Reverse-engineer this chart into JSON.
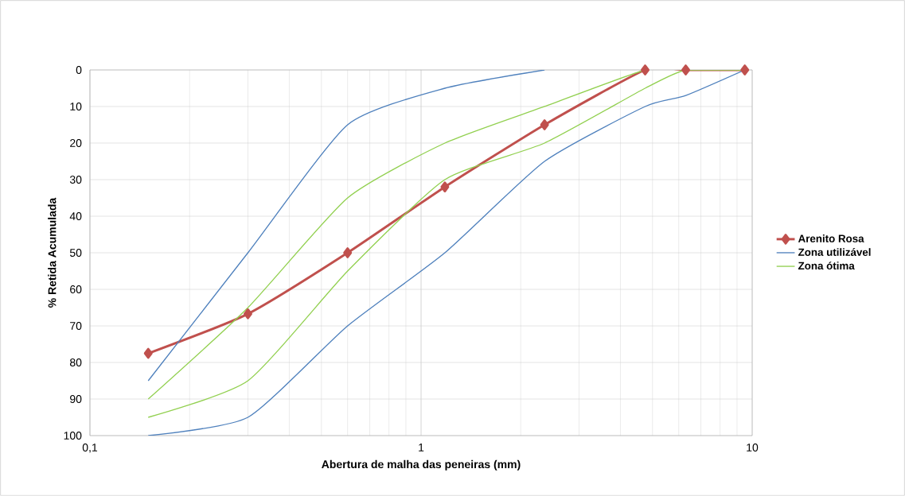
{
  "chart_data": {
    "type": "line",
    "xlabel": "Abertura de malha das peneiras (mm)",
    "ylabel": "% Retida Acumulada",
    "log": "x",
    "xlim": [
      0.1,
      10
    ],
    "xticks": [
      {
        "value": 0.1,
        "label": "0,1"
      },
      1,
      10
    ],
    "ylim": [
      100,
      0
    ],
    "yticks": [
      0,
      10,
      20,
      30,
      40,
      50,
      60,
      70,
      80,
      90,
      100
    ],
    "grid": true,
    "legend": "right",
    "line_style": "solid",
    "series": [
      {
        "name": "Arenito Rosa",
        "color": "#c0504d",
        "marker": "diamond",
        "x": [
          0.15,
          0.3,
          0.6,
          1.18,
          2.36,
          4.75,
          6.3,
          9.5
        ],
        "values": [
          77.5,
          66.7,
          50,
          32,
          15,
          0,
          0,
          0
        ]
      },
      {
        "name": "Zona utilizável",
        "color": "#4f81bd",
        "marker": "none",
        "x": [
          0.15,
          0.3,
          0.6,
          1.18,
          2.36,
          4.75,
          6.3,
          9.5
        ],
        "values": [
          100,
          95,
          70,
          50,
          25,
          10,
          7,
          0
        ]
      },
      {
        "color": "#4f81bd",
        "marker": "none",
        "x": [
          0.15,
          0.3,
          0.6,
          1.18,
          2.36
        ],
        "values": [
          85,
          50,
          15,
          5,
          0
        ]
      },
      {
        "name": "Zona ótima",
        "color": "#92d050",
        "marker": "none",
        "x": [
          0.15,
          0.3,
          0.6,
          1.18,
          2.36,
          4.75,
          6.3,
          9.5
        ],
        "values": [
          90,
          65,
          35,
          20,
          10,
          0,
          0,
          0
        ]
      },
      {
        "color": "#92d050",
        "marker": "none",
        "x": [
          0.15,
          0.3,
          0.6,
          1.18,
          2.36,
          4.75,
          6.3,
          9.5
        ],
        "values": [
          95,
          85,
          55,
          30,
          20,
          5,
          0,
          0
        ]
      }
    ]
  }
}
